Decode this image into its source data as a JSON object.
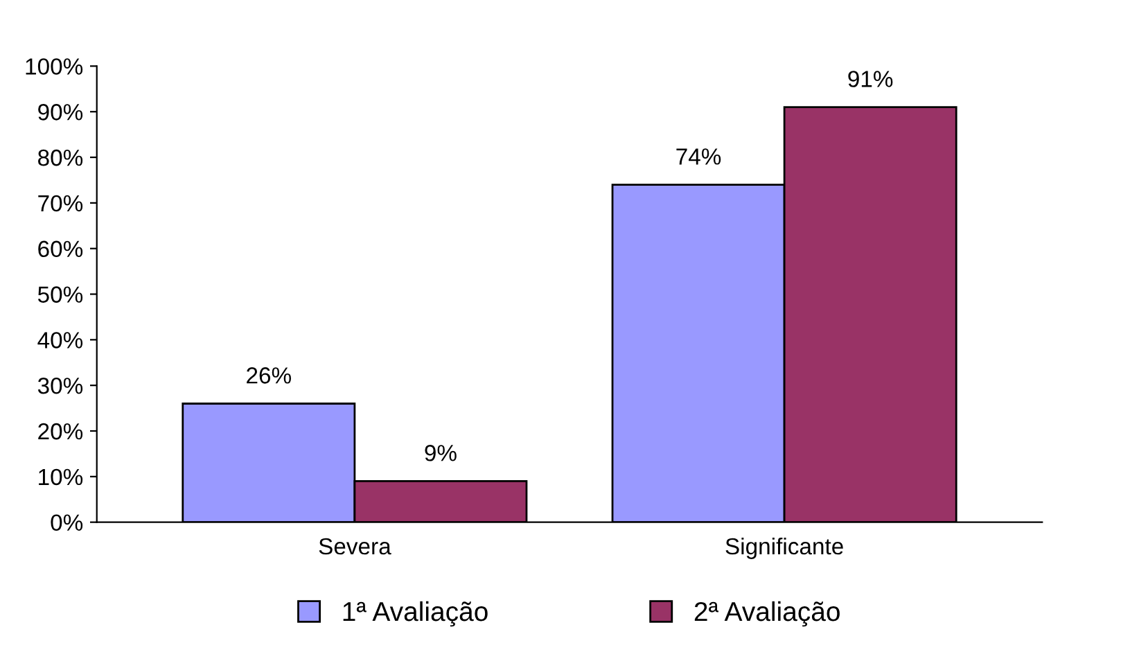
{
  "chart_data": {
    "type": "bar",
    "categories": [
      "Severa",
      "Significante"
    ],
    "series": [
      {
        "name": "1ª Avaliação",
        "color": "#9999ff",
        "values": [
          26,
          74
        ],
        "value_labels": [
          "26%",
          "74%"
        ]
      },
      {
        "name": "2ª Avaliação",
        "color": "#993366",
        "values": [
          9,
          91
        ],
        "value_labels": [
          "9%",
          "91%"
        ]
      }
    ],
    "ylim": [
      0,
      100
    ],
    "yticks": [
      {
        "value": 0,
        "label": "0%"
      },
      {
        "value": 10,
        "label": "10%"
      },
      {
        "value": 20,
        "label": "20%"
      },
      {
        "value": 30,
        "label": "30%"
      },
      {
        "value": 40,
        "label": "40%"
      },
      {
        "value": 50,
        "label": "50%"
      },
      {
        "value": 60,
        "label": "60%"
      },
      {
        "value": 70,
        "label": "70%"
      },
      {
        "value": 80,
        "label": "80%"
      },
      {
        "value": 90,
        "label": "90%"
      },
      {
        "value": 100,
        "label": "100%"
      }
    ],
    "grid": false,
    "legend": "bottom"
  }
}
